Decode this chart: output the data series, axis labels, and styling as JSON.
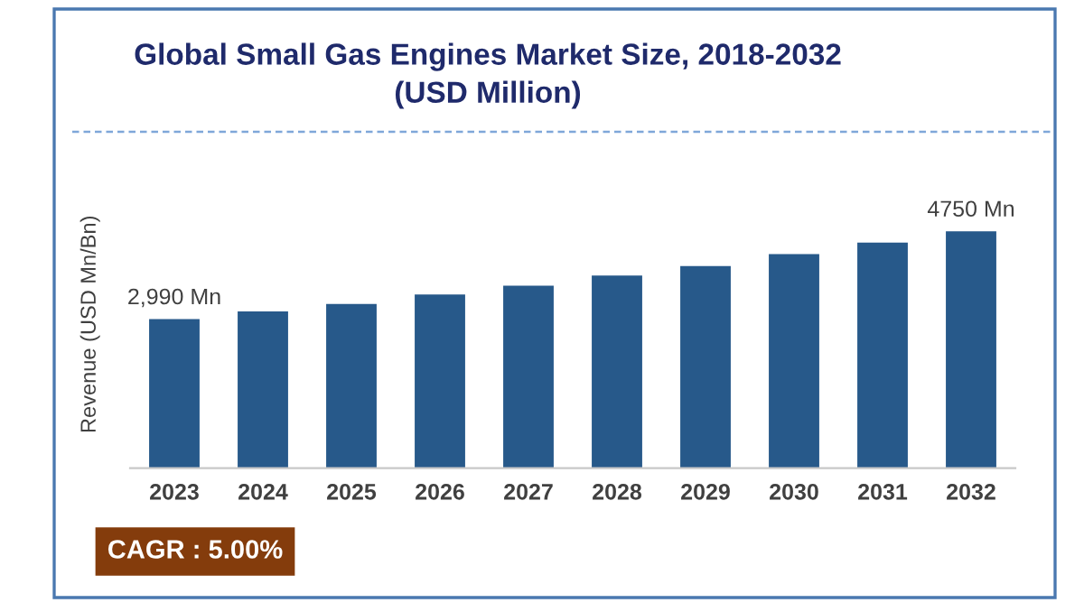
{
  "chart_data": {
    "type": "bar",
    "title": "Global Small Gas Engines Market Size, 2018-2032\n(USD Million)",
    "ylabel": "Revenue (USD Mn/Bn)",
    "annotations": [
      "CAGR : 5.00%"
    ],
    "categories": [
      "2023",
      "2024",
      "2025",
      "2026",
      "2027",
      "2028",
      "2029",
      "2030",
      "2031",
      "2032"
    ],
    "values": [
      2990,
      3140,
      3290,
      3480,
      3660,
      3860,
      4050,
      4290,
      4520,
      4750
    ],
    "value_labels": [
      "2,990 Mn",
      null,
      null,
      null,
      null,
      null,
      null,
      null,
      null,
      "4750 Mn"
    ],
    "color": "#27598a",
    "tick_labels": "x"
  }
}
